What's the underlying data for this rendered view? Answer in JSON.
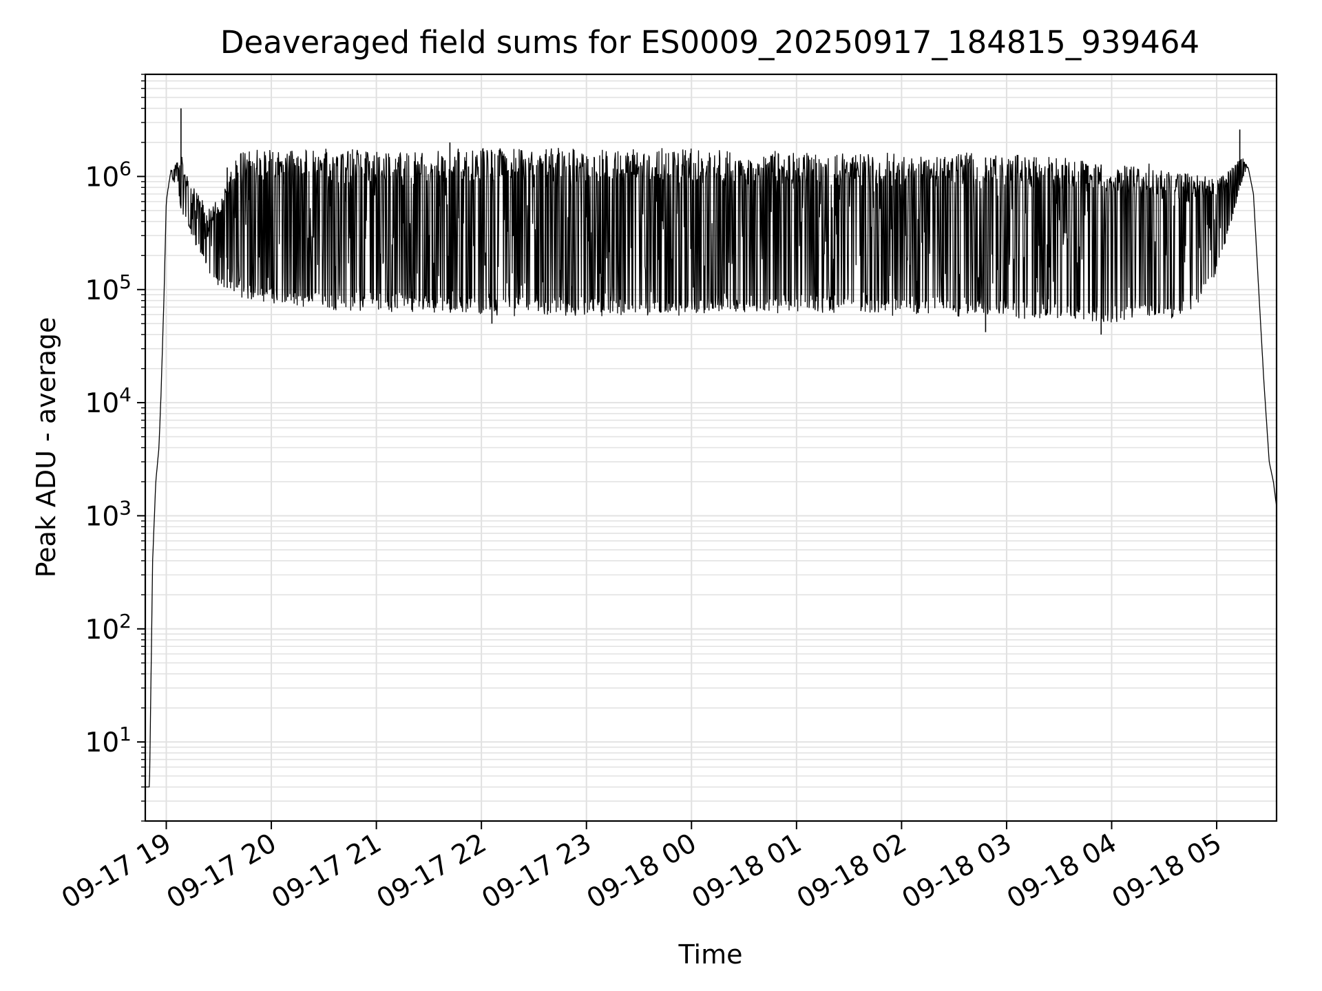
{
  "chart_data": {
    "type": "line",
    "title": "Deaveraged field sums for ES0009_20250917_184815_939464",
    "xlabel": "Time",
    "ylabel": "Peak ADU - average",
    "yscale": "log",
    "ylim": [
      2,
      8000000
    ],
    "xlim_hours": [
      18.8,
      29.57
    ],
    "grid": true,
    "x_tick_labels": [
      "09-17 19",
      "09-17 20",
      "09-17 21",
      "09-17 22",
      "09-17 23",
      "09-18 00",
      "09-18 01",
      "09-18 02",
      "09-18 03",
      "09-18 04",
      "09-18 05"
    ],
    "x_tick_hours": [
      19,
      20,
      21,
      22,
      23,
      24,
      25,
      26,
      27,
      28,
      29
    ],
    "y_ticks": [
      {
        "value": 10,
        "base": "10",
        "exp": "1"
      },
      {
        "value": 100,
        "base": "10",
        "exp": "2"
      },
      {
        "value": 1000,
        "base": "10",
        "exp": "3"
      },
      {
        "value": 10000,
        "base": "10",
        "exp": "4"
      },
      {
        "value": 100000,
        "base": "10",
        "exp": "5"
      },
      {
        "value": 1000000,
        "base": "10",
        "exp": "6"
      }
    ],
    "series": [
      {
        "name": "peak_adu_minus_average",
        "color": "#000000",
        "envelope": {
          "hours": [
            18.8,
            18.84,
            18.87,
            18.9,
            18.93,
            18.95,
            18.98,
            19.0,
            19.03,
            19.06,
            19.1,
            19.15,
            19.2,
            19.3,
            19.4,
            19.5,
            19.7,
            19.85,
            20.0,
            20.5,
            21.0,
            21.5,
            22.0,
            22.5,
            23.0,
            23.5,
            24.0,
            24.5,
            25.0,
            25.5,
            26.0,
            26.5,
            27.0,
            27.3,
            27.6,
            27.8,
            28.0,
            28.3,
            28.6,
            28.8,
            29.0,
            29.1,
            29.2,
            29.25,
            29.3,
            29.35,
            29.4,
            29.45,
            29.5,
            29.54,
            29.57
          ],
          "high": [
            4,
            4,
            400,
            2000,
            4000,
            12000,
            100000,
            600000,
            1000000,
            1200000,
            1200000,
            1500000,
            900000,
            700000,
            500000,
            600000,
            1600000,
            1650000,
            1650000,
            1650000,
            1600000,
            1600000,
            1650000,
            1650000,
            1600000,
            1600000,
            1600000,
            1550000,
            1550000,
            1500000,
            1500000,
            1500000,
            1450000,
            1400000,
            1350000,
            1300000,
            1250000,
            1200000,
            1100000,
            1000000,
            900000,
            1000000,
            1300000,
            1400000,
            1200000,
            700000,
            100000,
            15000,
            3000,
            2000,
            1200
          ],
          "low": [
            4,
            4,
            400,
            2000,
            4000,
            12000,
            100000,
            600000,
            900000,
            1000000,
            800000,
            500000,
            400000,
            250000,
            150000,
            110000,
            95000,
            85000,
            80000,
            72000,
            70000,
            68000,
            65000,
            64000,
            63000,
            64000,
            65000,
            67000,
            68000,
            67000,
            65000,
            64000,
            62000,
            60000,
            58000,
            55000,
            55000,
            58000,
            62000,
            70000,
            150000,
            300000,
            700000,
            1100000,
            1200000,
            700000,
            100000,
            15000,
            3000,
            2000,
            1200
          ]
        },
        "spikes": [
          {
            "hour": 19.14,
            "value": 4000000
          },
          {
            "hour": 21.7,
            "value": 2000000
          },
          {
            "hour": 29.22,
            "value": 2600000
          },
          {
            "hour": 19.58,
            "value": 1200000
          },
          {
            "hour": 22.1,
            "value": 50000
          },
          {
            "hour": 27.9,
            "value": 40000
          },
          {
            "hour": 26.8,
            "value": 42000
          }
        ]
      }
    ]
  }
}
